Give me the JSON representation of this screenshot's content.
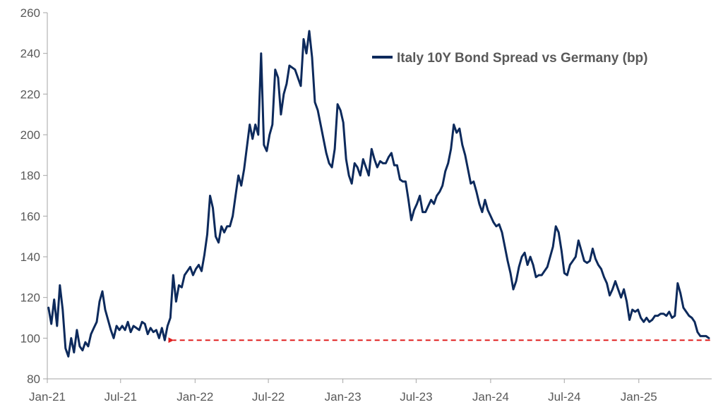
{
  "chart_data": {
    "type": "line",
    "title": "",
    "xlabel": "",
    "ylabel": "",
    "ylim": [
      80,
      260
    ],
    "yticks": [
      80,
      100,
      120,
      140,
      160,
      180,
      200,
      220,
      240,
      260
    ],
    "xlim": [
      "2021-01-01",
      "2025-06-30"
    ],
    "xticks": [
      {
        "date": "2021-01-01",
        "label": "Jan-21"
      },
      {
        "date": "2021-07-01",
        "label": "Jul-21"
      },
      {
        "date": "2022-01-01",
        "label": "Jan-22"
      },
      {
        "date": "2022-07-01",
        "label": "Jul-22"
      },
      {
        "date": "2023-01-01",
        "label": "Jan-23"
      },
      {
        "date": "2023-07-01",
        "label": "Jul-23"
      },
      {
        "date": "2024-01-01",
        "label": "Jan-24"
      },
      {
        "date": "2024-07-01",
        "label": "Jul-24"
      },
      {
        "date": "2025-01-01",
        "label": "Jan-25"
      }
    ],
    "grid": false,
    "legend_position": "top-right",
    "series": [
      {
        "name": "Italy 10Y Bond Spread vs Germany (bp)",
        "color": "#0d2a5c",
        "points": [
          [
            "2021-01-04",
            115
          ],
          [
            "2021-01-11",
            107
          ],
          [
            "2021-01-18",
            119
          ],
          [
            "2021-01-25",
            106
          ],
          [
            "2021-02-01",
            126
          ],
          [
            "2021-02-08",
            114
          ],
          [
            "2021-02-15",
            95
          ],
          [
            "2021-02-22",
            91
          ],
          [
            "2021-03-01",
            100
          ],
          [
            "2021-03-08",
            93
          ],
          [
            "2021-03-15",
            104
          ],
          [
            "2021-03-22",
            96
          ],
          [
            "2021-03-29",
            94
          ],
          [
            "2021-04-05",
            98
          ],
          [
            "2021-04-12",
            96
          ],
          [
            "2021-04-19",
            102
          ],
          [
            "2021-04-26",
            105
          ],
          [
            "2021-05-03",
            108
          ],
          [
            "2021-05-10",
            118
          ],
          [
            "2021-05-17",
            123
          ],
          [
            "2021-05-24",
            114
          ],
          [
            "2021-05-31",
            109
          ],
          [
            "2021-06-07",
            104
          ],
          [
            "2021-06-14",
            100
          ],
          [
            "2021-06-21",
            106
          ],
          [
            "2021-06-28",
            104
          ],
          [
            "2021-07-05",
            106
          ],
          [
            "2021-07-12",
            104
          ],
          [
            "2021-07-19",
            108
          ],
          [
            "2021-07-26",
            103
          ],
          [
            "2021-08-02",
            106
          ],
          [
            "2021-08-09",
            105
          ],
          [
            "2021-08-16",
            104
          ],
          [
            "2021-08-23",
            108
          ],
          [
            "2021-08-30",
            107
          ],
          [
            "2021-09-06",
            102
          ],
          [
            "2021-09-13",
            105
          ],
          [
            "2021-09-20",
            103
          ],
          [
            "2021-09-27",
            104
          ],
          [
            "2021-10-04",
            100
          ],
          [
            "2021-10-11",
            105
          ],
          [
            "2021-10-18",
            99
          ],
          [
            "2021-10-25",
            106
          ],
          [
            "2021-11-01",
            110
          ],
          [
            "2021-11-08",
            131
          ],
          [
            "2021-11-15",
            118
          ],
          [
            "2021-11-22",
            126
          ],
          [
            "2021-11-29",
            125
          ],
          [
            "2021-12-06",
            131
          ],
          [
            "2021-12-13",
            133
          ],
          [
            "2021-12-20",
            135
          ],
          [
            "2021-12-27",
            131
          ],
          [
            "2022-01-03",
            134
          ],
          [
            "2022-01-10",
            136
          ],
          [
            "2022-01-17",
            133
          ],
          [
            "2022-01-24",
            141
          ],
          [
            "2022-01-31",
            151
          ],
          [
            "2022-02-07",
            170
          ],
          [
            "2022-02-14",
            164
          ],
          [
            "2022-02-21",
            150
          ],
          [
            "2022-02-28",
            147
          ],
          [
            "2022-03-07",
            155
          ],
          [
            "2022-03-14",
            152
          ],
          [
            "2022-03-21",
            155
          ],
          [
            "2022-03-28",
            155
          ],
          [
            "2022-04-04",
            160
          ],
          [
            "2022-04-11",
            170
          ],
          [
            "2022-04-18",
            180
          ],
          [
            "2022-04-25",
            175
          ],
          [
            "2022-05-02",
            183
          ],
          [
            "2022-05-09",
            194
          ],
          [
            "2022-05-16",
            205
          ],
          [
            "2022-05-23",
            198
          ],
          [
            "2022-05-30",
            205
          ],
          [
            "2022-06-06",
            200
          ],
          [
            "2022-06-13",
            240
          ],
          [
            "2022-06-20",
            195
          ],
          [
            "2022-06-27",
            192
          ],
          [
            "2022-07-04",
            200
          ],
          [
            "2022-07-11",
            205
          ],
          [
            "2022-07-18",
            232
          ],
          [
            "2022-07-25",
            228
          ],
          [
            "2022-08-01",
            210
          ],
          [
            "2022-08-08",
            220
          ],
          [
            "2022-08-15",
            225
          ],
          [
            "2022-08-22",
            234
          ],
          [
            "2022-09-05",
            232
          ],
          [
            "2022-09-19",
            224
          ],
          [
            "2022-09-26",
            247
          ],
          [
            "2022-10-03",
            240
          ],
          [
            "2022-10-10",
            251
          ],
          [
            "2022-10-17",
            238
          ],
          [
            "2022-10-24",
            216
          ],
          [
            "2022-10-31",
            212
          ],
          [
            "2022-11-07",
            205
          ],
          [
            "2022-11-14",
            198
          ],
          [
            "2022-11-21",
            191
          ],
          [
            "2022-11-28",
            186
          ],
          [
            "2022-12-05",
            184
          ],
          [
            "2022-12-12",
            193
          ],
          [
            "2022-12-19",
            215
          ],
          [
            "2022-12-26",
            212
          ],
          [
            "2023-01-02",
            206
          ],
          [
            "2023-01-09",
            188
          ],
          [
            "2023-01-16",
            180
          ],
          [
            "2023-01-23",
            176
          ],
          [
            "2023-01-30",
            186
          ],
          [
            "2023-02-06",
            184
          ],
          [
            "2023-02-13",
            180
          ],
          [
            "2023-02-20",
            188
          ],
          [
            "2023-02-27",
            184
          ],
          [
            "2023-03-06",
            180
          ],
          [
            "2023-03-13",
            193
          ],
          [
            "2023-03-20",
            188
          ],
          [
            "2023-03-27",
            184
          ],
          [
            "2023-04-03",
            187
          ],
          [
            "2023-04-10",
            186
          ],
          [
            "2023-04-17",
            186
          ],
          [
            "2023-04-24",
            189
          ],
          [
            "2023-05-01",
            191
          ],
          [
            "2023-05-08",
            185
          ],
          [
            "2023-05-15",
            185
          ],
          [
            "2023-05-22",
            178
          ],
          [
            "2023-05-29",
            177
          ],
          [
            "2023-06-05",
            177
          ],
          [
            "2023-06-12",
            168
          ],
          [
            "2023-06-19",
            158
          ],
          [
            "2023-06-26",
            163
          ],
          [
            "2023-07-03",
            166
          ],
          [
            "2023-07-10",
            170
          ],
          [
            "2023-07-17",
            162
          ],
          [
            "2023-07-24",
            162
          ],
          [
            "2023-07-31",
            165
          ],
          [
            "2023-08-07",
            168
          ],
          [
            "2023-08-14",
            166
          ],
          [
            "2023-08-21",
            170
          ],
          [
            "2023-08-28",
            172
          ],
          [
            "2023-09-04",
            175
          ],
          [
            "2023-09-11",
            182
          ],
          [
            "2023-09-18",
            186
          ],
          [
            "2023-09-25",
            193
          ],
          [
            "2023-10-02",
            205
          ],
          [
            "2023-10-09",
            201
          ],
          [
            "2023-10-16",
            203
          ],
          [
            "2023-10-23",
            195
          ],
          [
            "2023-10-30",
            190
          ],
          [
            "2023-11-06",
            183
          ],
          [
            "2023-11-13",
            176
          ],
          [
            "2023-11-20",
            177
          ],
          [
            "2023-11-27",
            172
          ],
          [
            "2023-12-04",
            166
          ],
          [
            "2023-12-11",
            162
          ],
          [
            "2023-12-18",
            168
          ],
          [
            "2023-12-25",
            163
          ],
          [
            "2024-01-01",
            160
          ],
          [
            "2024-01-08",
            157
          ],
          [
            "2024-01-15",
            155
          ],
          [
            "2024-01-22",
            156
          ],
          [
            "2024-01-29",
            152
          ],
          [
            "2024-02-05",
            145
          ],
          [
            "2024-02-12",
            138
          ],
          [
            "2024-02-19",
            132
          ],
          [
            "2024-02-26",
            124
          ],
          [
            "2024-03-04",
            128
          ],
          [
            "2024-03-11",
            135
          ],
          [
            "2024-03-18",
            140
          ],
          [
            "2024-03-25",
            142
          ],
          [
            "2024-04-01",
            136
          ],
          [
            "2024-04-08",
            140
          ],
          [
            "2024-04-15",
            136
          ],
          [
            "2024-04-22",
            130
          ],
          [
            "2024-04-29",
            131
          ],
          [
            "2024-05-06",
            131
          ],
          [
            "2024-05-13",
            133
          ],
          [
            "2024-05-20",
            135
          ],
          [
            "2024-05-27",
            140
          ],
          [
            "2024-06-03",
            145
          ],
          [
            "2024-06-10",
            155
          ],
          [
            "2024-06-17",
            152
          ],
          [
            "2024-06-24",
            143
          ],
          [
            "2024-07-01",
            132
          ],
          [
            "2024-07-08",
            131
          ],
          [
            "2024-07-15",
            136
          ],
          [
            "2024-07-22",
            138
          ],
          [
            "2024-07-29",
            140
          ],
          [
            "2024-08-05",
            148
          ],
          [
            "2024-08-12",
            143
          ],
          [
            "2024-08-19",
            138
          ],
          [
            "2024-08-26",
            137
          ],
          [
            "2024-09-02",
            138
          ],
          [
            "2024-09-09",
            144
          ],
          [
            "2024-09-16",
            139
          ],
          [
            "2024-09-23",
            136
          ],
          [
            "2024-09-30",
            134
          ],
          [
            "2024-10-07",
            130
          ],
          [
            "2024-10-14",
            127
          ],
          [
            "2024-10-21",
            121
          ],
          [
            "2024-10-28",
            124
          ],
          [
            "2024-11-04",
            128
          ],
          [
            "2024-11-11",
            124
          ],
          [
            "2024-11-18",
            120
          ],
          [
            "2024-11-25",
            124
          ],
          [
            "2024-12-02",
            118
          ],
          [
            "2024-12-09",
            109
          ],
          [
            "2024-12-16",
            114
          ],
          [
            "2024-12-23",
            113
          ],
          [
            "2024-12-30",
            114
          ],
          [
            "2025-01-06",
            110
          ],
          [
            "2025-01-13",
            108
          ],
          [
            "2025-01-20",
            110
          ],
          [
            "2025-01-27",
            108
          ],
          [
            "2025-02-03",
            109
          ],
          [
            "2025-02-10",
            111
          ],
          [
            "2025-02-17",
            111
          ],
          [
            "2025-02-24",
            112
          ],
          [
            "2025-03-03",
            112
          ],
          [
            "2025-03-10",
            111
          ],
          [
            "2025-03-17",
            113
          ],
          [
            "2025-03-24",
            110
          ],
          [
            "2025-03-31",
            111
          ],
          [
            "2025-04-07",
            127
          ],
          [
            "2025-04-14",
            122
          ],
          [
            "2025-04-21",
            115
          ],
          [
            "2025-04-28",
            113
          ],
          [
            "2025-05-05",
            111
          ],
          [
            "2025-05-12",
            110
          ],
          [
            "2025-05-19",
            108
          ],
          [
            "2025-05-26",
            103
          ],
          [
            "2025-06-02",
            101
          ],
          [
            "2025-06-09",
            101
          ],
          [
            "2025-06-16",
            101
          ],
          [
            "2025-06-23",
            100
          ]
        ]
      }
    ],
    "annotations": [
      {
        "type": "dashed-arrow",
        "color": "#e02020",
        "y": 99,
        "from": "2025-06-26",
        "to": "2021-10-25"
      }
    ]
  }
}
